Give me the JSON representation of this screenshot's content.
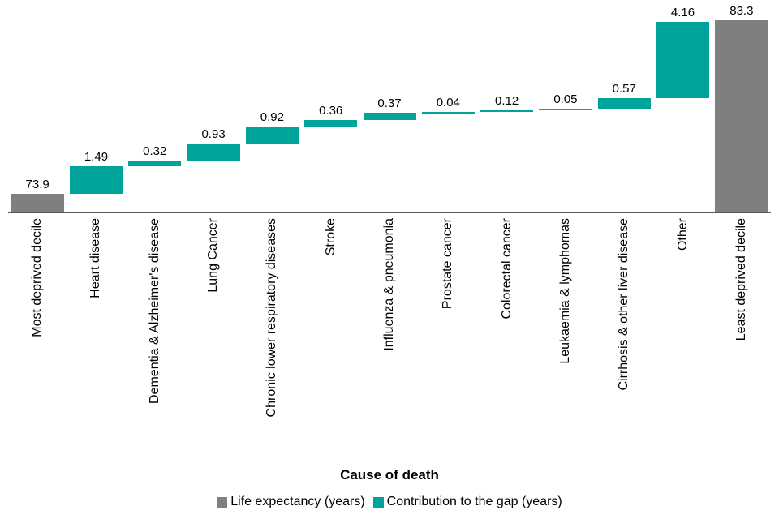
{
  "chart_data": {
    "type": "waterfall",
    "title": "",
    "xlabel": "Cause of death",
    "grid": false,
    "legend_position": "bottom",
    "y_axis": {
      "min": 72.9,
      "max": 83.3,
      "visible": false
    },
    "colors": {
      "total": "#7f7f7f",
      "delta": "#00a49a"
    },
    "categories": [
      "Most deprived decile",
      "Heart disease",
      "Dementia & Alzheimer's disease",
      "Lung Cancer",
      "Chronic lower respiratory diseases",
      "Stroke",
      "Influenza & pneumonia",
      "Prostate cancer",
      "Colorectal cancer",
      "Leukaemia & lymphomas",
      "Cirrhosis & other liver disease",
      "Other",
      "Least deprived decile"
    ],
    "bars": [
      {
        "category": "Most deprived decile",
        "value": 73.9,
        "label": "73.9",
        "kind": "total"
      },
      {
        "category": "Heart disease",
        "value": 1.49,
        "label": "1.49",
        "kind": "delta"
      },
      {
        "category": "Dementia & Alzheimer's disease",
        "value": 0.32,
        "label": "0.32",
        "kind": "delta"
      },
      {
        "category": "Lung Cancer",
        "value": 0.93,
        "label": "0.93",
        "kind": "delta"
      },
      {
        "category": "Chronic lower respiratory diseases",
        "value": 0.92,
        "label": "0.92",
        "kind": "delta"
      },
      {
        "category": "Stroke",
        "value": 0.36,
        "label": "0.36",
        "kind": "delta"
      },
      {
        "category": "Influenza & pneumonia",
        "value": 0.37,
        "label": "0.37",
        "kind": "delta"
      },
      {
        "category": "Prostate cancer",
        "value": 0.04,
        "label": "0.04",
        "kind": "delta"
      },
      {
        "category": "Colorectal cancer",
        "value": 0.12,
        "label": "0.12",
        "kind": "delta"
      },
      {
        "category": "Leukaemia & lymphomas",
        "value": 0.05,
        "label": "0.05",
        "kind": "delta"
      },
      {
        "category": "Cirrhosis & other liver disease",
        "value": 0.57,
        "label": "0.57",
        "kind": "delta"
      },
      {
        "category": "Other",
        "value": 4.16,
        "label": "4.16",
        "kind": "delta"
      },
      {
        "category": "Least deprived decile",
        "value": 83.3,
        "label": "83.3",
        "kind": "total"
      }
    ],
    "legend": [
      {
        "label": "Life expectancy (years)",
        "color_key": "total"
      },
      {
        "label": "Contribution to the gap (years)",
        "color_key": "delta"
      }
    ]
  }
}
